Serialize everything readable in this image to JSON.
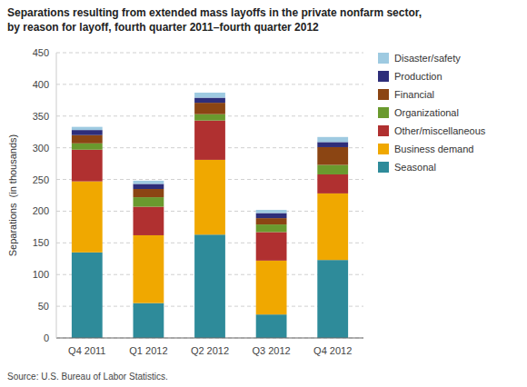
{
  "chart_data": {
    "type": "bar",
    "stacked": true,
    "title": "Separations resulting from extended mass layoffs in the private nonfarm sector,",
    "subtitle": "by reason for layoff, fourth quarter 2011–fourth quarter 2012",
    "y_label": "Separations  (in thousands)",
    "annotations": [
      "Source: U.S. Bureau of Labor Statistics."
    ],
    "categories": [
      "Q4 2011",
      "Q1 2012",
      "Q2 2012",
      "Q3 2012",
      "Q4 2012"
    ],
    "series": [
      {
        "name": "Seasonal",
        "color": "#2e8b9a",
        "values": [
          135,
          55,
          163,
          37,
          123
        ]
      },
      {
        "name": "Business demand",
        "color": "#f0a800",
        "values": [
          112,
          107,
          118,
          85,
          105
        ]
      },
      {
        "name": "Other/miscellaneous",
        "color": "#b03030",
        "values": [
          50,
          45,
          62,
          45,
          30
        ]
      },
      {
        "name": "Organizational",
        "color": "#6a9a2e",
        "values": [
          10,
          15,
          10,
          12,
          15
        ]
      },
      {
        "name": "Financial",
        "color": "#8b4513",
        "values": [
          13,
          13,
          18,
          10,
          28
        ]
      },
      {
        "name": "Production",
        "color": "#2e2e7a",
        "values": [
          8,
          8,
          8,
          8,
          8
        ]
      },
      {
        "name": "Disaster/safety",
        "color": "#9ecae1",
        "values": [
          5,
          5,
          8,
          5,
          8
        ]
      }
    ],
    "ylim": [
      0,
      450
    ],
    "yticks": [
      0,
      50,
      100,
      150,
      200,
      250,
      300,
      350,
      400,
      450
    ],
    "grid": true,
    "legend": "right"
  }
}
